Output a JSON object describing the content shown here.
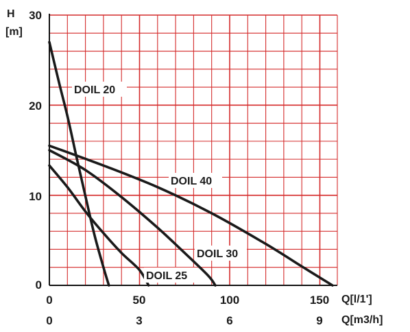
{
  "chart_data": {
    "type": "line",
    "title": "",
    "ylabel": [
      "H",
      "[m]"
    ],
    "xlabel": "Q[l/1']",
    "xlabel2": "Q[m3/h]",
    "xlim": [
      0,
      160
    ],
    "ylim": [
      0,
      30
    ],
    "x_ticks": [
      0,
      50,
      100,
      150
    ],
    "x2_ticks": [
      0,
      3,
      6,
      9
    ],
    "y_ticks": [
      0,
      10,
      20,
      30
    ],
    "grid": true,
    "grid_color": "#d42a2a",
    "line_color": "#1a1a1a",
    "series": [
      {
        "name": "DOIL 20",
        "points": [
          [
            0,
            27
          ],
          [
            5,
            22.8
          ],
          [
            10,
            18.8
          ],
          [
            15,
            14.3
          ],
          [
            20,
            9.9
          ],
          [
            25,
            5.6
          ],
          [
            30,
            2.0
          ],
          [
            33,
            0
          ]
        ]
      },
      {
        "name": "DOIL 25",
        "points": [
          [
            0,
            13.3
          ],
          [
            10,
            10.9
          ],
          [
            20,
            8.2
          ],
          [
            30,
            5.8
          ],
          [
            40,
            3.6
          ],
          [
            50,
            1.7
          ],
          [
            55,
            0
          ]
        ]
      },
      {
        "name": "DOIL 30",
        "points": [
          [
            0,
            15.0
          ],
          [
            20,
            12.8
          ],
          [
            40,
            9.8
          ],
          [
            60,
            6.4
          ],
          [
            75,
            3.6
          ],
          [
            88,
            1.1
          ],
          [
            92,
            0
          ]
        ]
      },
      {
        "name": "DOIL 40",
        "points": [
          [
            0,
            15.5
          ],
          [
            30,
            13.3
          ],
          [
            60,
            10.9
          ],
          [
            90,
            8.0
          ],
          [
            120,
            4.6
          ],
          [
            140,
            2.1
          ],
          [
            157,
            0
          ]
        ]
      }
    ]
  }
}
